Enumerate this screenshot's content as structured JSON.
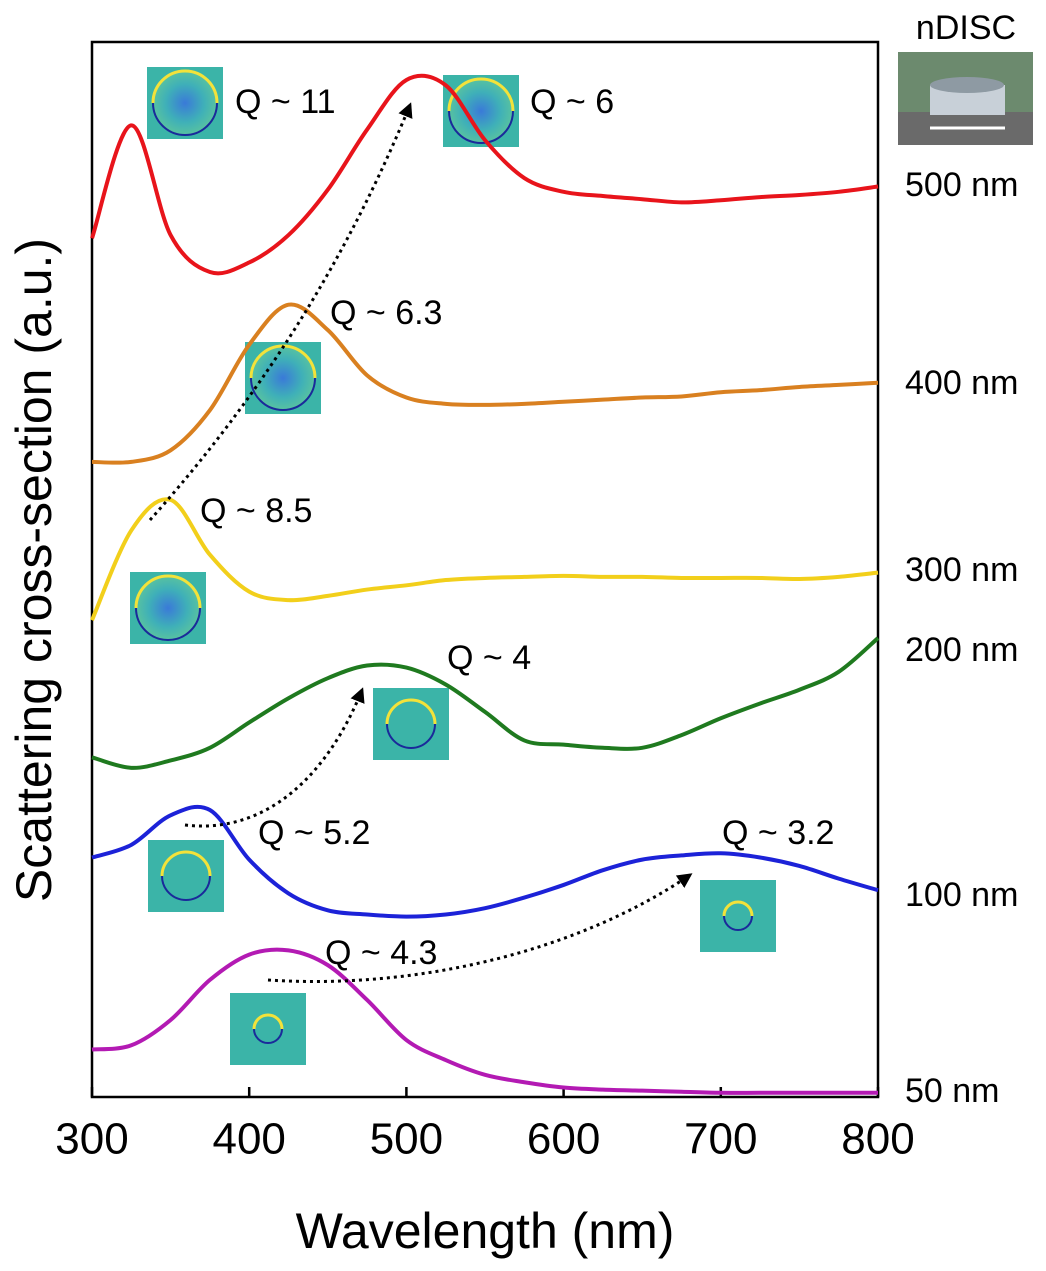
{
  "chart_data": {
    "type": "line",
    "x_label": "Wavelength (nm)",
    "y_label": "Scattering cross-section (a.u.)",
    "inset_label": "nDISC",
    "x": [
      300,
      325,
      350,
      375,
      400,
      425,
      450,
      475,
      500,
      525,
      550,
      575,
      600,
      625,
      650,
      675,
      700,
      725,
      750,
      775,
      800
    ],
    "xlim": [
      300,
      800
    ],
    "xticks": [
      300,
      400,
      500,
      600,
      700,
      800
    ],
    "ylim": [
      0,
      100
    ],
    "series": [
      {
        "name": "500 nm",
        "color": "#e8141b",
        "values": [
          81.4,
          92.1,
          81.7,
          78.2,
          79.1,
          81.7,
          86.0,
          91.7,
          96.4,
          95.9,
          90.7,
          87.1,
          85.8,
          85.4,
          85.1,
          84.8,
          85.0,
          85.3,
          85.5,
          85.8,
          86.3
        ]
      },
      {
        "name": "400 nm",
        "color": "#d98020",
        "values": [
          60.2,
          60.2,
          61.3,
          65.1,
          71.3,
          75.1,
          72.7,
          68.4,
          66.3,
          65.7,
          65.6,
          65.7,
          65.9,
          66.1,
          66.3,
          66.4,
          66.8,
          67.0,
          67.3,
          67.5,
          67.7
        ]
      },
      {
        "name": "300 nm",
        "color": "#f2cf1b",
        "values": [
          45.2,
          53.7,
          56.6,
          51.4,
          47.9,
          47.1,
          47.5,
          48.1,
          48.5,
          49.0,
          49.2,
          49.3,
          49.4,
          49.3,
          49.3,
          49.2,
          49.2,
          49.2,
          49.1,
          49.3,
          49.7
        ]
      },
      {
        "name": "200 nm",
        "color": "#1f7a1f",
        "values": [
          32.2,
          31.2,
          31.9,
          33.1,
          35.5,
          37.8,
          39.7,
          40.9,
          40.7,
          39.1,
          36.5,
          33.8,
          33.4,
          33.1,
          33.1,
          34.3,
          35.9,
          37.3,
          38.6,
          40.3,
          43.5
        ]
      },
      {
        "name": "100 nm",
        "color": "#1c22d8",
        "values": [
          22.7,
          23.9,
          26.7,
          27.2,
          22.5,
          19.3,
          17.7,
          17.3,
          17.1,
          17.3,
          17.9,
          18.9,
          20.1,
          21.5,
          22.5,
          22.9,
          23.1,
          22.7,
          21.9,
          20.7,
          19.6
        ]
      },
      {
        "name": "50 nm",
        "color": "#b31ab3",
        "values": [
          4.5,
          4.9,
          7.3,
          11.1,
          13.5,
          13.9,
          12.5,
          9.2,
          5.4,
          3.5,
          2.1,
          1.4,
          0.9,
          0.7,
          0.6,
          0.5,
          0.4,
          0.4,
          0.4,
          0.4,
          0.4
        ]
      }
    ],
    "annotations": [
      "Q ~ 11",
      "Q ~ 6",
      "Q ~ 6.3",
      "Q ~ 8.5",
      "Q ~ 4",
      "Q ~ 5.2",
      "Q ~ 3.2",
      "Q ~ 4.3"
    ]
  }
}
